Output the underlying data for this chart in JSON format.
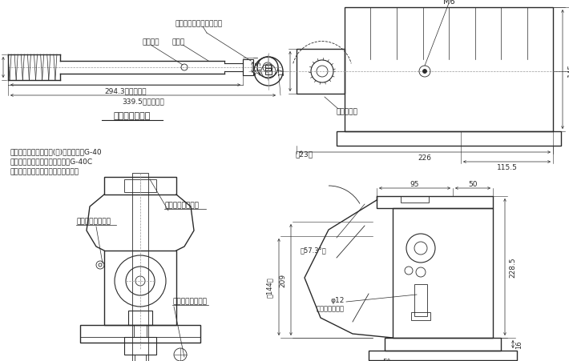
{
  "bg_color": "#ffffff",
  "line_color": "#2a2a2a",
  "dim_color": "#2a2a2a",
  "figsize": [
    7.1,
    4.52
  ],
  "dpi": 100,
  "font": "Noto Sans CJK JP",
  "annotations": {
    "release_screw_inlet": "リリーズスクリュ差込口",
    "stopper": "ストッパ",
    "telescopic": "伸縮式",
    "lever_label": "専用操作レバー",
    "note1_line1": "注１．型式　標準塗装(赤)タイプ　：G-40",
    "note1_line2": "　　　ニッケルめっきタイプ：G-40C",
    "note2": "２．専用操作レバーが付属します。",
    "m6": "M6",
    "lever_rotation": "レバー回転",
    "oil_filling": "オイルフィリング",
    "op_lever_inlet": "操作レバー差込口",
    "release_screw2": "リリーズスクリュ"
  }
}
